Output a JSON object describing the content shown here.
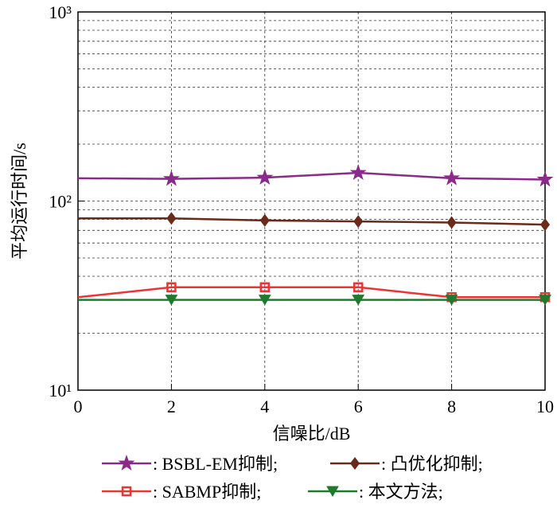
{
  "chart_data": {
    "type": "line",
    "x_label": "信噪比/dB",
    "y_label": "平均运行时间/s",
    "x": [
      0,
      2,
      4,
      6,
      8,
      10
    ],
    "xlim": [
      0,
      10
    ],
    "xticks": [
      0,
      2,
      4,
      6,
      8,
      10
    ],
    "ylim": [
      10,
      1000
    ],
    "yscale": "log",
    "yticks": [
      {
        "value": 10,
        "label": "10¹"
      },
      {
        "value": 100,
        "label": "10²"
      },
      {
        "value": 1000,
        "label": "10³"
      }
    ],
    "grid": true,
    "series": [
      {
        "name": ": BSBL-EM抑制;",
        "color": "#8b2a8b",
        "marker": "star",
        "values": [
          132,
          131,
          133,
          141,
          132,
          130
        ]
      },
      {
        "name": ": 凸优化抑制;",
        "color": "#6b2a1a",
        "marker": "diamond",
        "values": [
          81,
          81,
          79,
          78,
          77,
          75
        ]
      },
      {
        "name": ": SABMP抑制;",
        "color": "#ee3333",
        "marker": "square",
        "values": [
          31,
          35,
          35,
          35,
          31,
          31
        ]
      },
      {
        "name": ": 本文方法;",
        "color": "#1f7a2e",
        "marker": "triangle-down",
        "values": [
          30,
          30,
          30,
          30,
          30,
          30
        ]
      }
    ]
  }
}
